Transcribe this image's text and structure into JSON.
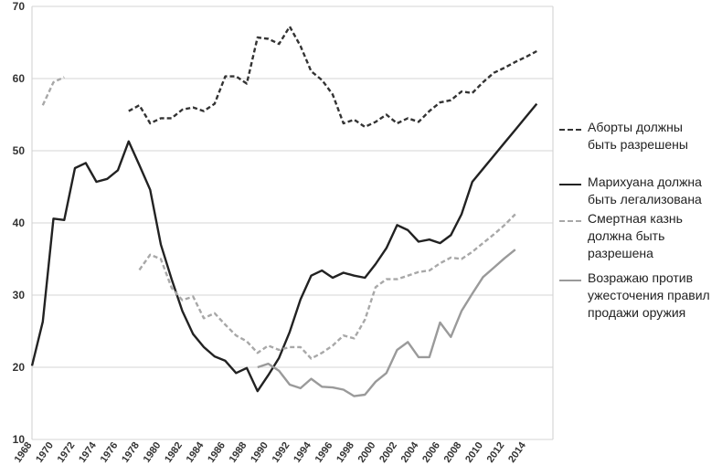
{
  "chart_data": {
    "type": "line",
    "title": "",
    "xlabel": "",
    "ylabel": "",
    "xlim": [
      1968,
      2015
    ],
    "ylim": [
      10,
      70
    ],
    "yticks": [
      10,
      20,
      30,
      40,
      50,
      60,
      70
    ],
    "xticks": [
      "1968",
      "1970",
      "1972",
      "1974",
      "1976",
      "1978",
      "1980",
      "1982",
      "1984",
      "1986",
      "1988",
      "1990",
      "1992",
      "1994",
      "1996",
      "1998",
      "2000",
      "2002",
      "2004",
      "2006",
      "2008",
      "2010",
      "2012",
      "2014"
    ],
    "grid": "horizontal",
    "legend_position": "right",
    "series": [
      {
        "name": "Аборты должны быть разрешены",
        "label_lines": [
          "Аборты должны",
          "быть разрешены"
        ],
        "color": "#333333",
        "style": "dashed",
        "points": [
          [
            1977,
            55.5
          ],
          [
            1978,
            56.3
          ],
          [
            1979,
            53.8
          ],
          [
            1980,
            54.5
          ],
          [
            1981,
            54.5
          ],
          [
            1982,
            55.7
          ],
          [
            1983,
            56.0
          ],
          [
            1984,
            55.5
          ],
          [
            1985,
            56.5
          ],
          [
            1986,
            60.3
          ],
          [
            1987,
            60.3
          ],
          [
            1988,
            59.3
          ],
          [
            1989,
            65.7
          ],
          [
            1990,
            65.5
          ],
          [
            1991,
            64.8
          ],
          [
            1992,
            67.2
          ],
          [
            1993,
            64.5
          ],
          [
            1994,
            61.0
          ],
          [
            1995,
            59.8
          ],
          [
            1996,
            57.8
          ],
          [
            1997,
            53.8
          ],
          [
            1998,
            54.3
          ],
          [
            1999,
            53.3
          ],
          [
            2000,
            54.0
          ],
          [
            2001,
            55.0
          ],
          [
            2002,
            53.8
          ],
          [
            2003,
            54.5
          ],
          [
            2004,
            54.0
          ],
          [
            2005,
            55.5
          ],
          [
            2006,
            56.7
          ],
          [
            2007,
            57.0
          ],
          [
            2008,
            58.2
          ],
          [
            2009,
            58.0
          ],
          [
            2010,
            59.5
          ],
          [
            2011,
            60.8
          ],
          [
            2012,
            61.5
          ],
          [
            2013,
            62.3
          ],
          [
            2014,
            63.0
          ],
          [
            2015,
            63.8
          ]
        ]
      },
      {
        "name": "Марихуана должна быть легализована",
        "label_lines": [
          "Марихуана должна",
          "быть легализована"
        ],
        "color": "#222222",
        "style": "solid",
        "points": [
          [
            1968,
            20.2
          ],
          [
            1969,
            26.3
          ],
          [
            1970,
            40.6
          ],
          [
            1971,
            40.4
          ],
          [
            1972,
            47.6
          ],
          [
            1973,
            48.3
          ],
          [
            1974,
            45.7
          ],
          [
            1975,
            46.1
          ],
          [
            1976,
            47.3
          ],
          [
            1977,
            51.3
          ],
          [
            1978,
            48.0
          ],
          [
            1979,
            44.6
          ],
          [
            1980,
            37.0
          ],
          [
            1981,
            32.2
          ],
          [
            1982,
            27.8
          ],
          [
            1983,
            24.6
          ],
          [
            1984,
            22.8
          ],
          [
            1985,
            21.5
          ],
          [
            1986,
            20.9
          ],
          [
            1987,
            19.2
          ],
          [
            1988,
            19.9
          ],
          [
            1989,
            16.7
          ],
          [
            1990,
            18.9
          ],
          [
            1991,
            21.3
          ],
          [
            1992,
            24.9
          ],
          [
            1993,
            29.4
          ],
          [
            1994,
            32.7
          ],
          [
            1995,
            33.4
          ],
          [
            1996,
            32.4
          ],
          [
            1997,
            33.1
          ],
          [
            1998,
            32.7
          ],
          [
            1999,
            32.4
          ],
          [
            2000,
            34.3
          ],
          [
            2001,
            36.5
          ],
          [
            2002,
            39.7
          ],
          [
            2003,
            39.0
          ],
          [
            2004,
            37.4
          ],
          [
            2005,
            37.7
          ],
          [
            2006,
            37.2
          ],
          [
            2007,
            38.3
          ],
          [
            2008,
            41.2
          ],
          [
            2009,
            45.7
          ],
          [
            2010,
            47.5
          ],
          [
            2011,
            49.3
          ],
          [
            2012,
            51.1
          ],
          [
            2013,
            52.9
          ],
          [
            2014,
            54.7
          ],
          [
            2015,
            56.5
          ]
        ]
      },
      {
        "name": "Смертная казнь должна быть разрешена",
        "label_lines": [
          "Смертная казнь",
          "должна быть",
          "разрешена"
        ],
        "color": "#a8a8a8",
        "style": "dashed",
        "points": [
          [
            1969,
            56.3
          ],
          [
            1970,
            59.5
          ],
          [
            1971,
            60.2
          ],
          [
            1978,
            33.5
          ],
          [
            1979,
            35.6
          ],
          [
            1980,
            35.0
          ],
          [
            1981,
            31.0
          ],
          [
            1982,
            29.3
          ],
          [
            1983,
            29.8
          ],
          [
            1984,
            26.8
          ],
          [
            1985,
            27.5
          ],
          [
            1986,
            25.9
          ],
          [
            1987,
            24.4
          ],
          [
            1988,
            23.6
          ],
          [
            1989,
            22.0
          ],
          [
            1990,
            23.0
          ],
          [
            1991,
            22.4
          ],
          [
            1992,
            22.8
          ],
          [
            1993,
            22.8
          ],
          [
            1994,
            21.2
          ],
          [
            1995,
            22.0
          ],
          [
            1996,
            23.0
          ],
          [
            1997,
            24.4
          ],
          [
            1998,
            24.0
          ],
          [
            1999,
            26.6
          ],
          [
            2000,
            31.1
          ],
          [
            2001,
            32.2
          ],
          [
            2002,
            32.2
          ],
          [
            2003,
            32.7
          ],
          [
            2004,
            33.2
          ],
          [
            2005,
            33.4
          ],
          [
            2006,
            34.4
          ],
          [
            2007,
            35.2
          ],
          [
            2008,
            35.0
          ],
          [
            2009,
            36.0
          ],
          [
            2010,
            37.2
          ],
          [
            2011,
            38.4
          ],
          [
            2012,
            39.7
          ],
          [
            2013,
            41.2
          ]
        ]
      },
      {
        "name": "Возражаю против ужесточения правил продажи оружия",
        "label_lines": [
          "Возражаю против",
          "ужесточения правил",
          "продажи оружия"
        ],
        "color": "#9a9a9a",
        "style": "solid",
        "points": [
          [
            1989,
            20.0
          ],
          [
            1990,
            20.5
          ],
          [
            1991,
            19.5
          ],
          [
            1992,
            17.6
          ],
          [
            1993,
            17.1
          ],
          [
            1994,
            18.4
          ],
          [
            1995,
            17.3
          ],
          [
            1996,
            17.2
          ],
          [
            1997,
            16.9
          ],
          [
            1998,
            16.0
          ],
          [
            1999,
            16.2
          ],
          [
            2000,
            18.0
          ],
          [
            2001,
            19.2
          ],
          [
            2002,
            22.4
          ],
          [
            2003,
            23.5
          ],
          [
            2004,
            21.4
          ],
          [
            2005,
            21.4
          ],
          [
            2006,
            26.2
          ],
          [
            2007,
            24.2
          ],
          [
            2008,
            27.8
          ],
          [
            2009,
            30.2
          ],
          [
            2010,
            32.5
          ],
          [
            2011,
            33.8
          ],
          [
            2012,
            35.1
          ],
          [
            2013,
            36.3
          ]
        ]
      }
    ]
  }
}
